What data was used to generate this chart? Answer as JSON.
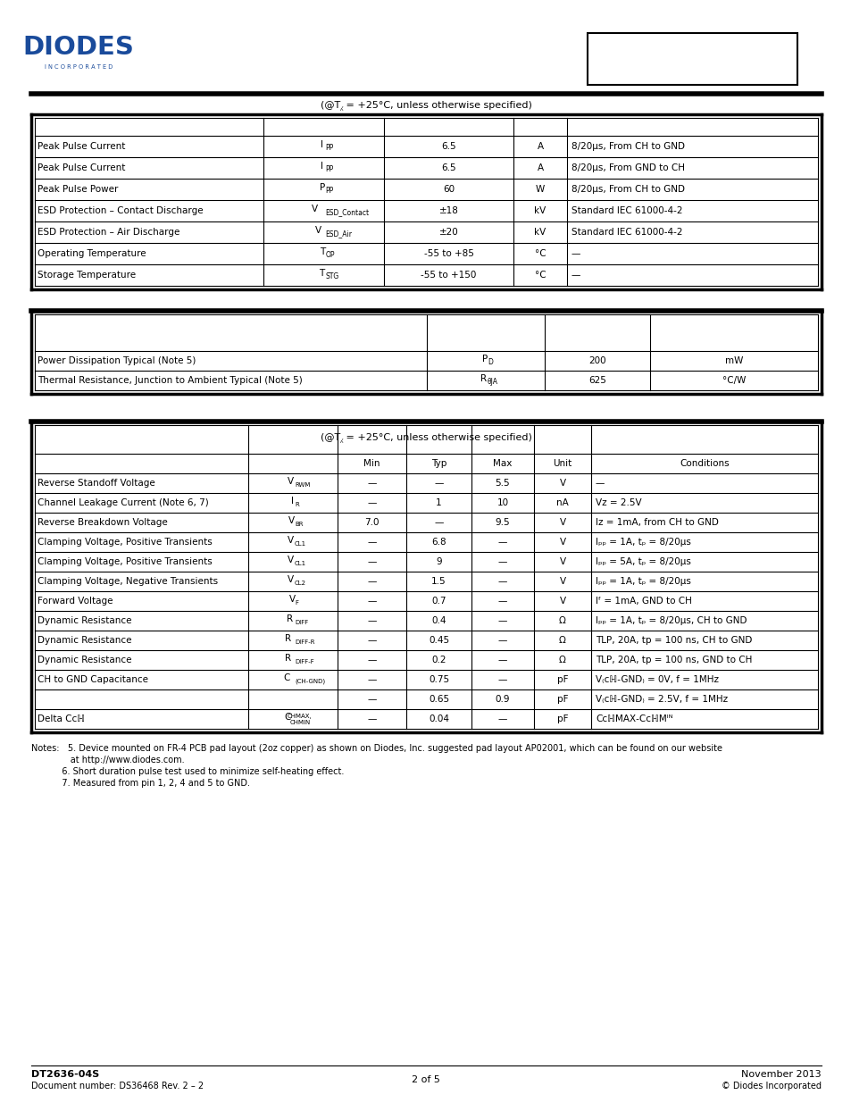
{
  "page_bg": "#ffffff",
  "logo_color": "#1a4b9b",
  "section1_title": "(@T⁁ = +25°C, unless otherwise specified)",
  "section3_title": "(@T⁁ = +25°C, unless otherwise specified)",
  "section1_rows": [
    [
      "Peak Pulse Current",
      "I",
      "PP",
      "6.5",
      "A",
      "8/20μs, From CH to GND"
    ],
    [
      "Peak Pulse Current",
      "I",
      "PP",
      "6.5",
      "A",
      "8/20μs, From GND to CH"
    ],
    [
      "Peak Pulse Power",
      "P",
      "PP",
      "60",
      "W",
      "8/20μs, From CH to GND"
    ],
    [
      "ESD Protection – Contact Discharge",
      "V",
      "ESD_Contact",
      "±18",
      "kV",
      "Standard IEC 61000-4-2"
    ],
    [
      "ESD Protection – Air Discharge",
      "V",
      "ESD_Air",
      "±20",
      "kV",
      "Standard IEC 61000-4-2"
    ],
    [
      "Operating Temperature",
      "T",
      "OP",
      "-55 to +85",
      "°C",
      "—"
    ],
    [
      "Storage Temperature",
      "T",
      "STG",
      "-55 to +150",
      "°C",
      "—"
    ]
  ],
  "section2_rows": [
    [
      "Power Dissipation Typical (Note 5)",
      "P",
      "D",
      "200",
      "mW"
    ],
    [
      "Thermal Resistance, Junction to Ambient Typical (Note 5)",
      "R",
      "θJA",
      "625",
      "°C/W"
    ]
  ],
  "section3_rows": [
    [
      "Reverse Standoff Voltage",
      "V",
      "RWM",
      "—",
      "—",
      "5.5",
      "V",
      "—"
    ],
    [
      "Channel Leakage Current (Note 6, 7)",
      "I",
      "R",
      "—",
      "1",
      "10",
      "nA",
      "Vᴢ = 2.5V"
    ],
    [
      "Reverse Breakdown Voltage",
      "V",
      "BR",
      "7.0",
      "—",
      "9.5",
      "V",
      "Iᴢ = 1mA, from CH to GND"
    ],
    [
      "Clamping Voltage, Positive Transients",
      "V",
      "CL1",
      "—",
      "6.8",
      "—",
      "V",
      "Iₚₚ = 1A, tₚ = 8/20μs"
    ],
    [
      "Clamping Voltage, Positive Transients",
      "V",
      "CL1",
      "—",
      "9",
      "—",
      "V",
      "Iₚₚ = 5A, tₚ = 8/20μs"
    ],
    [
      "Clamping Voltage, Negative Transients",
      "V",
      "CL2",
      "—",
      "1.5",
      "—",
      "V",
      "Iₚₚ = 1A, tₚ = 8/20μs"
    ],
    [
      "Forward Voltage",
      "V",
      "F",
      "—",
      "0.7",
      "—",
      "V",
      "Iᶠ = 1mA, GND to CH"
    ],
    [
      "Dynamic Resistance",
      "R",
      "DIFF",
      "—",
      "0.4",
      "—",
      "Ω",
      "Iₚₚ = 1A, tₚ = 8/20μs, CH to GND"
    ],
    [
      "Dynamic Resistance",
      "R",
      "DIFF-R",
      "—",
      "0.45",
      "—",
      "Ω",
      "TLP, 20A, tp = 100 ns, CH to GND"
    ],
    [
      "Dynamic Resistance",
      "R",
      "DIFF-F",
      "—",
      "0.2",
      "—",
      "Ω",
      "TLP, 20A, tp = 100 ns, GND to CH"
    ],
    [
      "CH to GND Capacitance",
      "C",
      "(CH-GND)",
      "—",
      "0.75",
      "—",
      "pF",
      "V₍ᴄℍ-GND₎ = 0V, f = 1MHz"
    ],
    [
      "",
      "",
      "",
      "—",
      "0.65",
      "0.9",
      "pF",
      "V₍ᴄℍ-GND₎ = 2.5V, f = 1MHz"
    ],
    [
      "Delta Cᴄℍ",
      "C",
      "CHMAX,\nCHMIN",
      "—",
      "0.04",
      "—",
      "pF",
      "CᴄℍΜΑΧ-CᴄℍΜᴵᴺ"
    ]
  ],
  "notes": [
    "Notes:   5. Device mounted on FR-4 PCB pad layout (2oz copper) as shown on Diodes, Inc. suggested pad layout AP02001, which can be found on our website",
    "              at http://www.diodes.com.",
    "           6. Short duration pulse test used to minimize self-heating effect.",
    "           7. Measured from pin 1, 2, 4 and 5 to GND."
  ],
  "footer_left1": "DT2636-04S",
  "footer_left2": "Document number: DS36468 Rev. 2 – 2",
  "footer_center": "2 of 5",
  "footer_right1": "November 2013",
  "footer_right2": "© Diodes Incorporated"
}
